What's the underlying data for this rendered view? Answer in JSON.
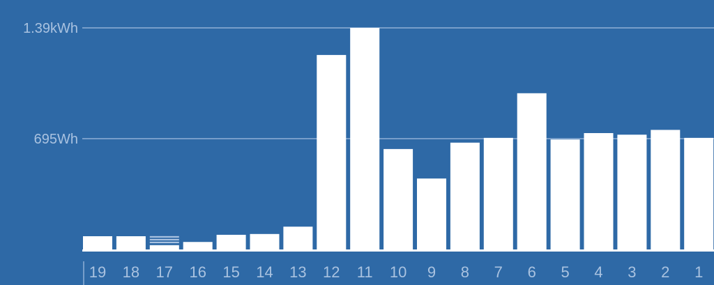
{
  "colors": {
    "background": "#2e69a6",
    "bar": "#ffffff",
    "gridline": "#8fb0d6",
    "tick_label": "#a9c2e0",
    "baseline": "#ffffff",
    "partial_stripe": "#a9c2e0"
  },
  "chart_data": {
    "type": "bar",
    "title": "",
    "xlabel": "",
    "ylabel": "",
    "unit": "Wh",
    "categories": [
      "19",
      "18",
      "17",
      "16",
      "15",
      "14",
      "13",
      "12",
      "11",
      "10",
      "9",
      "8",
      "7",
      "6",
      "5",
      "4",
      "3",
      "2",
      "1"
    ],
    "values": [
      83,
      83,
      27,
      47,
      92,
      97,
      143,
      1220,
      1390,
      630,
      445,
      670,
      700,
      980,
      690,
      730,
      720,
      750,
      700
    ],
    "ylim": [
      0,
      1390
    ],
    "gridlines": [
      {
        "value": 1390,
        "label": "1.39kWh"
      },
      {
        "value": 695,
        "label": "695Wh"
      }
    ],
    "grid": true,
    "legend": "none"
  }
}
